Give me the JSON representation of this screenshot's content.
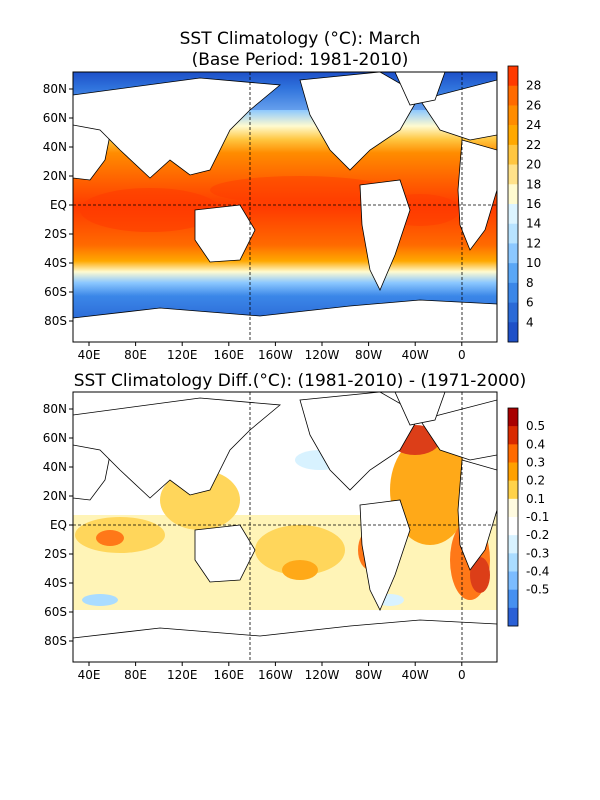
{
  "panels": [
    {
      "title": "SST Climatology (°C): March",
      "subtitle": "(Base Period: 1981-2010)",
      "lat_labels": [
        "80N",
        "60N",
        "40N",
        "20N",
        "EQ",
        "20S",
        "40S",
        "60S",
        "80S"
      ],
      "lon_labels": [
        "40E",
        "80E",
        "120E",
        "160E",
        "160W",
        "120W",
        "80W",
        "40W",
        "0"
      ],
      "colorbar": {
        "labels": [
          "28",
          "26",
          "24",
          "22",
          "20",
          "18",
          "16",
          "14",
          "12",
          "10",
          "8",
          "6",
          "4"
        ],
        "colors": [
          "#ff3a00",
          "#ff6a00",
          "#ff8c00",
          "#ffa800",
          "#ffc640",
          "#ffe28a",
          "#fffbd0",
          "#dcf4ff",
          "#b8e3ff",
          "#8cc8ff",
          "#5aa7f6",
          "#3b87e8",
          "#2a6ad7",
          "#1e50c8"
        ]
      }
    },
    {
      "title": "SST Climatology Diff.(°C): (1981-2010) - (1971-2000)",
      "lat_labels": [
        "80N",
        "60N",
        "40N",
        "20N",
        "EQ",
        "20S",
        "40S",
        "60S",
        "80S"
      ],
      "lon_labels": [
        "40E",
        "80E",
        "120E",
        "160E",
        "160W",
        "120W",
        "80W",
        "40W",
        "0"
      ],
      "colorbar": {
        "labels": [
          "0.5",
          "0.4",
          "0.3",
          "0.2",
          "0.1",
          "-0.1",
          "-0.2",
          "-0.3",
          "-0.4",
          "-0.5"
        ],
        "colors": [
          "#a80000",
          "#d92a00",
          "#ff6a00",
          "#ffa000",
          "#ffd24a",
          "#fffbe0",
          "#ffffff",
          "#d8f2ff",
          "#aadcff",
          "#7cbcff",
          "#4690f0",
          "#2a60d6"
        ]
      }
    }
  ]
}
